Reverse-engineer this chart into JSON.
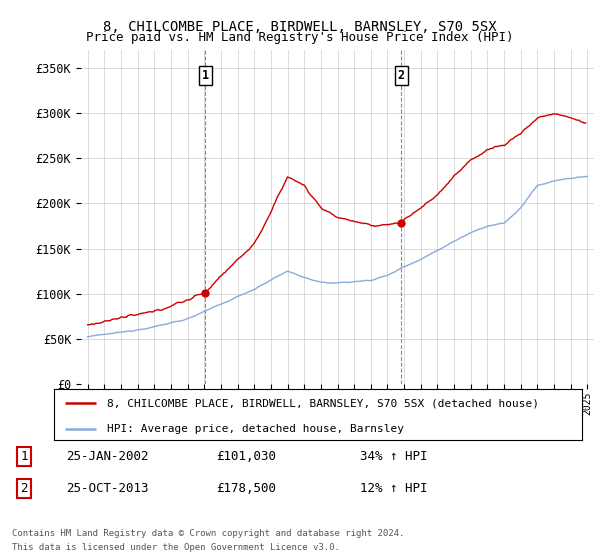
{
  "title": "8, CHILCOMBE PLACE, BIRDWELL, BARNSLEY, S70 5SX",
  "subtitle": "Price paid vs. HM Land Registry's House Price Index (HPI)",
  "ylabel_ticks": [
    0,
    50000,
    100000,
    150000,
    200000,
    250000,
    300000,
    350000
  ],
  "ylabel_labels": [
    "£0",
    "£50K",
    "£100K",
    "£150K",
    "£200K",
    "£250K",
    "£300K",
    "£350K"
  ],
  "xlim": [
    1994.6,
    2025.4
  ],
  "ylim": [
    0,
    370000
  ],
  "sale1_year": 2002.07,
  "sale1_price": 101030,
  "sale1_label": "25-JAN-2002",
  "sale1_amount": "£101,030",
  "sale1_hpi": "34% ↑ HPI",
  "sale2_year": 2013.82,
  "sale2_price": 178500,
  "sale2_label": "25-OCT-2013",
  "sale2_amount": "£178,500",
  "sale2_hpi": "12% ↑ HPI",
  "line1_color": "#cc0000",
  "line2_color": "#88aadd",
  "legend1": "8, CHILCOMBE PLACE, BIRDWELL, BARNSLEY, S70 5SX (detached house)",
  "legend2": "HPI: Average price, detached house, Barnsley",
  "footnote1": "Contains HM Land Registry data © Crown copyright and database right 2024.",
  "footnote2": "This data is licensed under the Open Government Licence v3.0.",
  "background_color": "#ffffff",
  "grid_color": "#cccccc",
  "hpi_key_x": [
    1995,
    1997,
    1999,
    2001,
    2003,
    2005,
    2007,
    2008,
    2009,
    2010,
    2011,
    2012,
    2013,
    2014,
    2015,
    2016,
    2017,
    2018,
    2019,
    2020,
    2021,
    2022,
    2023,
    2024,
    2025
  ],
  "hpi_key_y": [
    52000,
    57000,
    63000,
    72000,
    88000,
    105000,
    125000,
    118000,
    112000,
    112000,
    113000,
    115000,
    120000,
    130000,
    138000,
    148000,
    158000,
    168000,
    175000,
    178000,
    195000,
    220000,
    225000,
    228000,
    230000
  ],
  "prop_key_x": [
    1995,
    1997,
    1999,
    2001,
    2002.07,
    2003,
    2005,
    2006,
    2007,
    2008,
    2009,
    2010,
    2011,
    2012,
    2013.82,
    2014,
    2015,
    2016,
    2017,
    2018,
    2019,
    2020,
    2021,
    2022,
    2023,
    2024,
    2024.8
  ],
  "prop_key_y": [
    65000,
    73000,
    80000,
    93000,
    101030,
    120000,
    155000,
    190000,
    230000,
    220000,
    195000,
    185000,
    180000,
    175000,
    178500,
    182000,
    195000,
    210000,
    230000,
    248000,
    260000,
    265000,
    278000,
    295000,
    300000,
    295000,
    290000
  ]
}
